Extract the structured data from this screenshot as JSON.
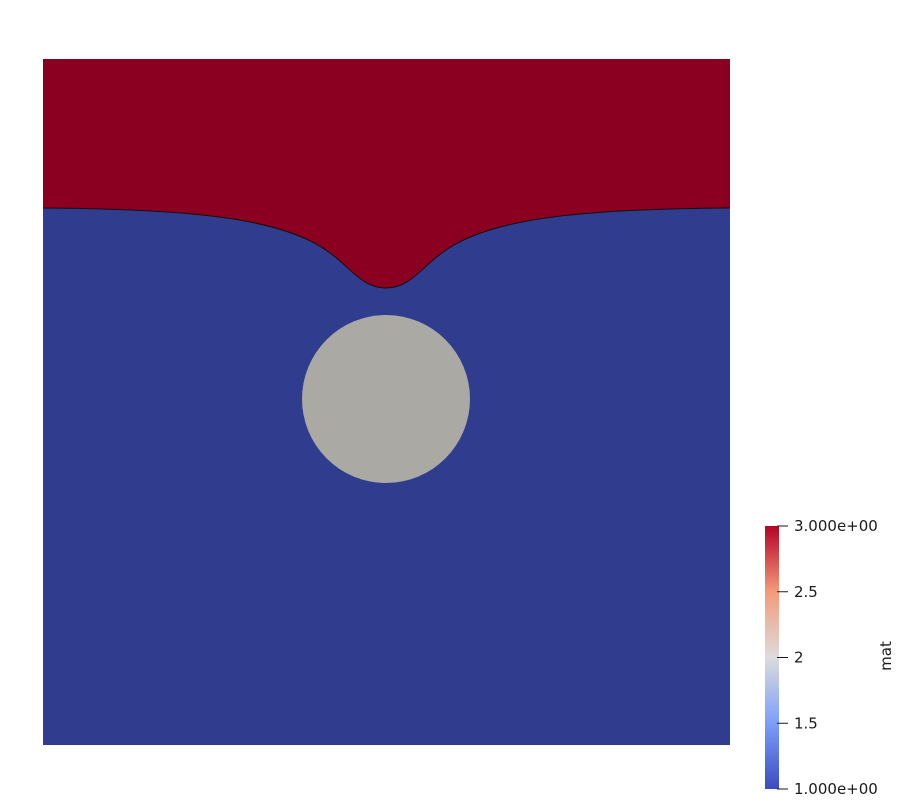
{
  "scene": {
    "colors": {
      "background": "#ffffff",
      "top_region": "#8b0020",
      "bottom_region": "#303d8f",
      "inclusion": "#aba9a4",
      "interface_line": "#111111"
    },
    "regions": [
      {
        "name": "top-layer",
        "mat_value": 3
      },
      {
        "name": "bottom-layer",
        "mat_value": 1
      },
      {
        "name": "circular-inclusion",
        "mat_value": 2
      }
    ]
  },
  "colorbar": {
    "title": "mat",
    "colormap": "cool-to-warm",
    "range": [
      1,
      3
    ],
    "colors": [
      "#3b4cc0",
      "#7b9ff9",
      "#dddcdc",
      "#f49a7b",
      "#b40426"
    ],
    "ticks": [
      {
        "value": 3,
        "label": "3.000e+00"
      },
      {
        "value": 2.5,
        "label": "2.5"
      },
      {
        "value": 2,
        "label": "2"
      },
      {
        "value": 1.5,
        "label": "1.5"
      },
      {
        "value": 1,
        "label": "1.000e+00"
      }
    ]
  }
}
